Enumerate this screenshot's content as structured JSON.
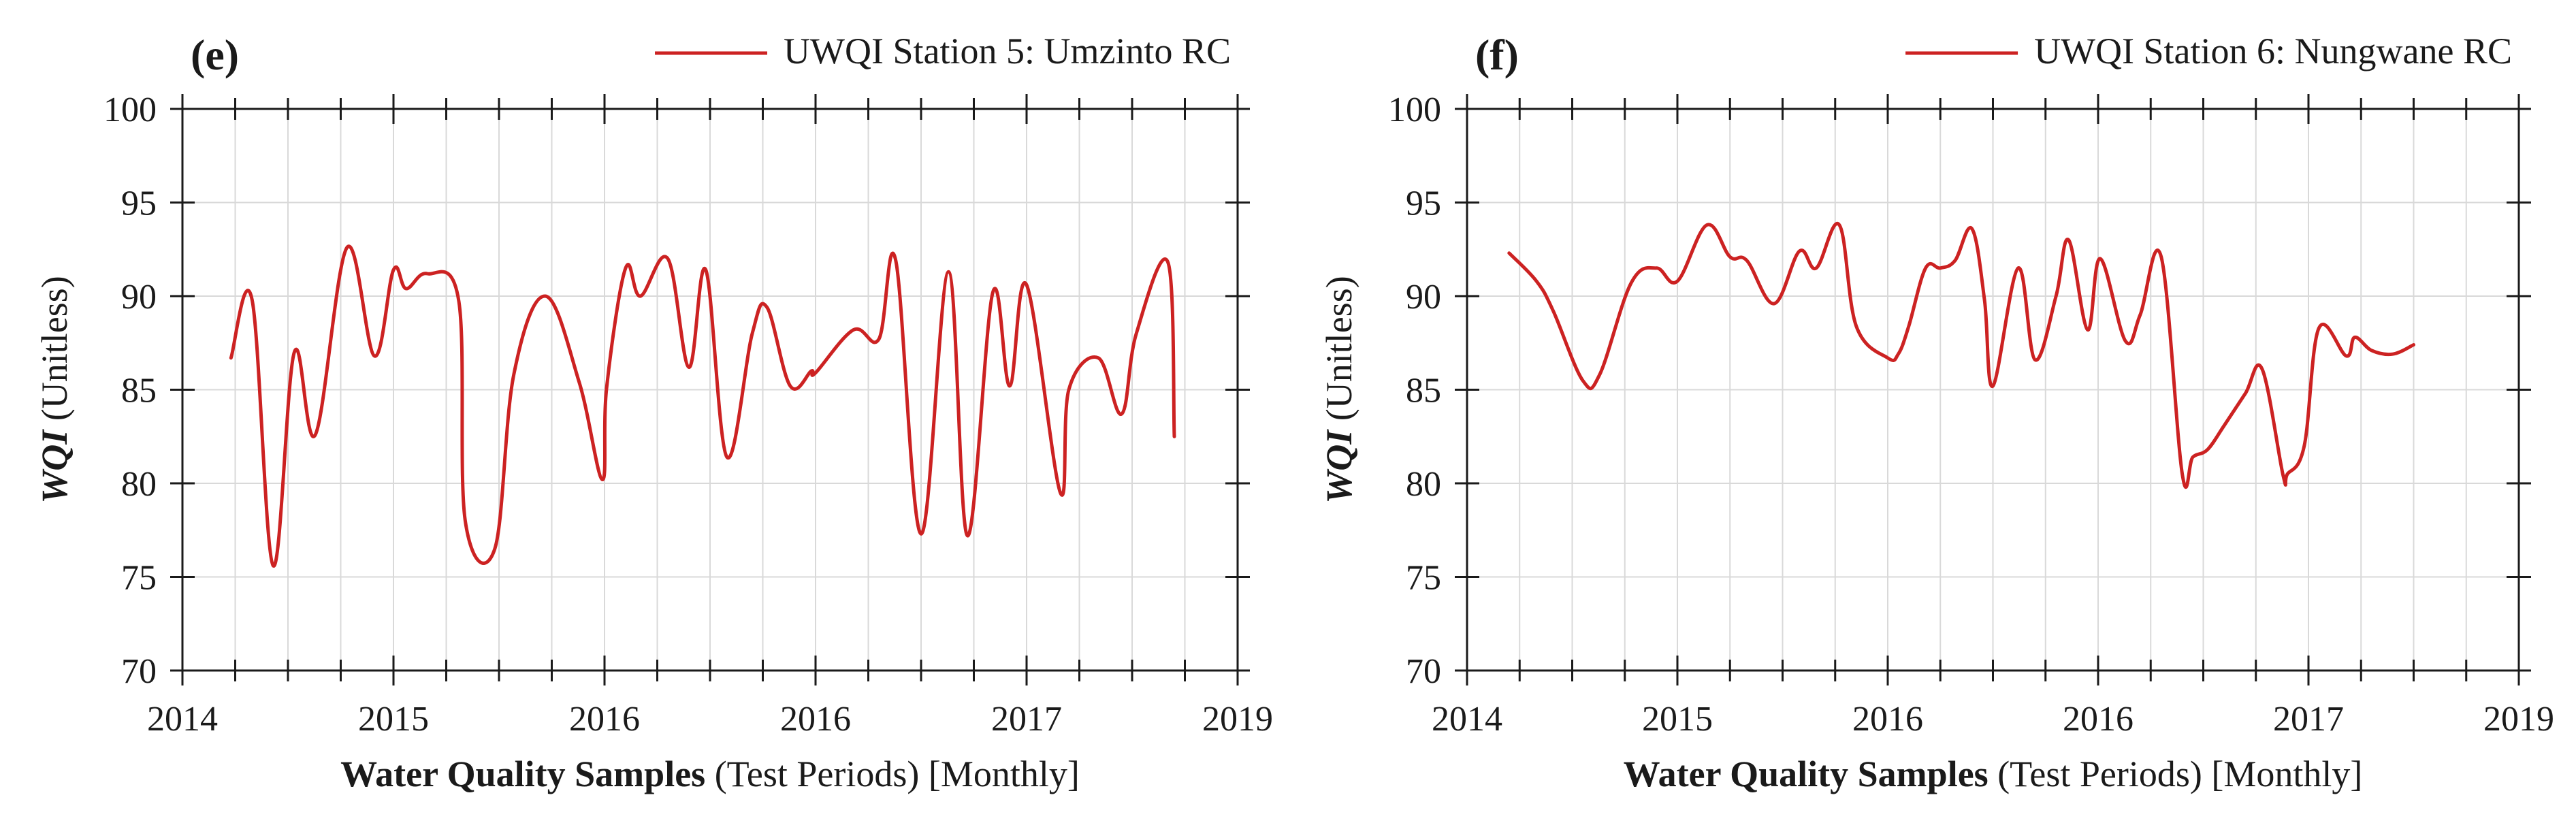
{
  "chart_data": [
    {
      "type": "line",
      "panel_label": "(e)",
      "legend": "UWQI Station 5: Umzinto RC",
      "ylabel_bold": "WQI",
      "ylabel_rest": " (Unitless)",
      "xlabel_bold": "Water Quality Samples",
      "xlabel_rest": " (Test Periods) [Monthly]",
      "xlim": [
        0,
        5
      ],
      "ylim": [
        70,
        100
      ],
      "x_ticks": [
        0,
        1,
        2,
        3,
        4,
        5
      ],
      "x_tick_labels": [
        "2014",
        "2015",
        "2016",
        "2016",
        "2017",
        "2019"
      ],
      "y_ticks": [
        70,
        75,
        80,
        85,
        90,
        95,
        100
      ],
      "y_tick_labels": [
        "70",
        "75",
        "80",
        "85",
        "90",
        "95",
        "100"
      ],
      "color": "#cc2222",
      "series": [
        {
          "name": "UWQI Station 5: Umzinto RC",
          "x": [
            0.23,
            0.33,
            0.43,
            0.53,
            0.63,
            0.78,
            0.91,
            1.0,
            1.06,
            1.16,
            1.31,
            1.34,
            1.48,
            1.57,
            1.72,
            1.88,
            1.99,
            2.01,
            2.1,
            2.17,
            2.3,
            2.4,
            2.48,
            2.58,
            2.7,
            2.77,
            2.88,
            2.98,
            3.0,
            3.18,
            3.3,
            3.38,
            3.5,
            3.63,
            3.72,
            3.84,
            3.92,
            4.0,
            4.16,
            4.2,
            4.34,
            4.45,
            4.52,
            4.67,
            4.7
          ],
          "y": [
            86.7,
            89.8,
            75.6,
            87.0,
            82.6,
            92.6,
            86.8,
            91.4,
            90.4,
            91.2,
            89.7,
            78.0,
            76.5,
            85.8,
            90.0,
            85.4,
            80.2,
            85.1,
            91.5,
            90.0,
            92.0,
            86.2,
            91.4,
            81.4,
            88.0,
            89.4,
            85.2,
            86.0,
            85.9,
            88.2,
            87.7,
            91.9,
            77.3,
            91.3,
            77.2,
            90.2,
            85.2,
            90.6,
            79.5,
            85.0,
            86.7,
            83.7,
            88.0,
            91.8,
            82.5
          ]
        }
      ]
    },
    {
      "type": "line",
      "panel_label": "(f)",
      "legend": "UWQI Station 6: Nungwane RC",
      "ylabel_bold": "WQI",
      "ylabel_rest": " (Unitless)",
      "xlabel_bold": "Water Quality Samples",
      "xlabel_rest": " (Test Periods) [Monthly]",
      "xlim": [
        0,
        5
      ],
      "ylim": [
        70,
        100
      ],
      "x_ticks": [
        0,
        1,
        2,
        3,
        4,
        5
      ],
      "x_tick_labels": [
        "2014",
        "2015",
        "2016",
        "2016",
        "2017",
        "2019"
      ],
      "y_ticks": [
        70,
        75,
        80,
        85,
        90,
        95,
        100
      ],
      "y_tick_labels": [
        "70",
        "75",
        "80",
        "85",
        "90",
        "95",
        "100"
      ],
      "color": "#cc2222",
      "series": [
        {
          "name": "UWQI Station 6: Nungwane RC",
          "x": [
            0.2,
            0.33,
            0.41,
            0.55,
            0.63,
            0.78,
            0.9,
            1.0,
            1.14,
            1.25,
            1.33,
            1.46,
            1.58,
            1.66,
            1.77,
            1.85,
            2.0,
            2.05,
            2.1,
            2.18,
            2.25,
            2.32,
            2.4,
            2.46,
            2.5,
            2.62,
            2.7,
            2.8,
            2.86,
            2.95,
            3.01,
            3.13,
            3.2,
            3.3,
            3.4,
            3.45,
            3.52,
            3.6,
            3.7,
            3.78,
            3.88,
            3.9,
            3.98,
            4.05,
            4.18,
            4.22,
            4.3,
            4.4,
            4.5
          ],
          "y": [
            92.3,
            90.8,
            89.2,
            85.5,
            85.8,
            90.7,
            91.5,
            90.8,
            93.8,
            92.1,
            91.9,
            89.6,
            92.4,
            91.5,
            93.8,
            88.4,
            86.7,
            86.9,
            88.4,
            91.5,
            91.5,
            91.9,
            93.6,
            89.8,
            85.2,
            91.5,
            86.6,
            90.0,
            93.0,
            88.2,
            92.0,
            87.6,
            89.0,
            92.1,
            80.5,
            81.4,
            81.8,
            83.1,
            84.8,
            86.1,
            80.4,
            80.5,
            82.0,
            88.3,
            86.8,
            87.8,
            87.1,
            86.9,
            87.4
          ]
        }
      ]
    }
  ]
}
